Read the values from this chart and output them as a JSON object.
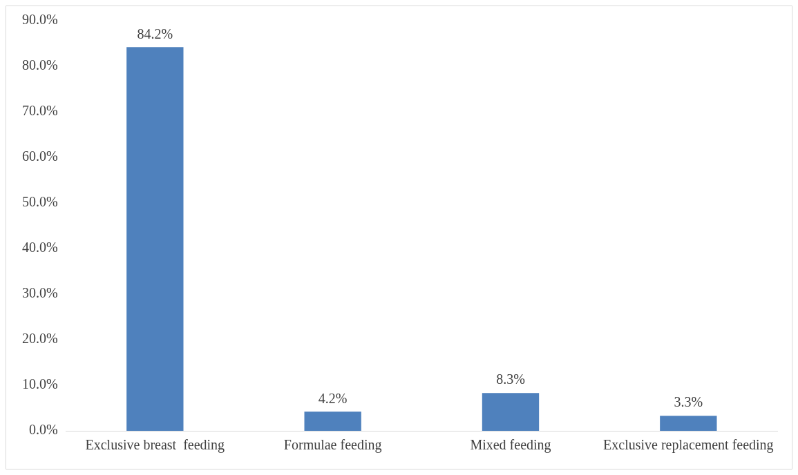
{
  "chart_data": {
    "type": "bar",
    "categories": [
      "Exclusive breast  feeding",
      "Formulae feeding",
      "Mixed feeding",
      "Exclusive replacement feeding"
    ],
    "values": [
      84.2,
      4.2,
      8.3,
      3.3
    ],
    "value_labels": [
      "84.2%",
      "4.2%",
      "8.3%",
      "3.3%"
    ],
    "color": "#4f81bd",
    "ylim": [
      0,
      90
    ],
    "yticks": [
      {
        "value": 0,
        "label": "0.0%"
      },
      {
        "value": 10,
        "label": "10.0%"
      },
      {
        "value": 20,
        "label": "20.0%"
      },
      {
        "value": 30,
        "label": "30.0%"
      },
      {
        "value": 40,
        "label": "40.0%"
      },
      {
        "value": 50,
        "label": "50.0%"
      },
      {
        "value": 60,
        "label": "60.0%"
      },
      {
        "value": 70,
        "label": "70.0%"
      },
      {
        "value": 80,
        "label": "80.0%"
      },
      {
        "value": 90,
        "label": "90.0%"
      }
    ],
    "grid": false,
    "legend": false
  }
}
